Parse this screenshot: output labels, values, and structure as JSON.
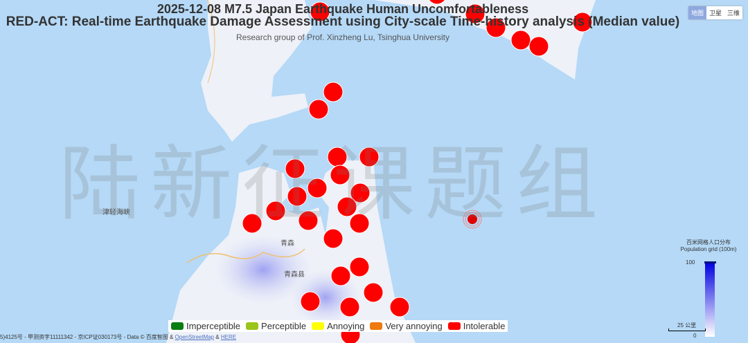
{
  "title": {
    "line1": "2025-12-08 M7.5 Japan Earthquake Human Uncomfortableness",
    "line2": "RED-ACT: Real-time Earthquake Damage Assessment using City-scale Time-history analysis (Median value)",
    "subtitle": "Research group of Prof. Xinzheng Lu, Tsinghua University"
  },
  "map_type": {
    "options": [
      "地图",
      "卫星",
      "三维"
    ],
    "selected": "地图"
  },
  "watermark": "陆新征课题组",
  "map_labels": {
    "strait": "津轻海峡",
    "city": "青森",
    "prefecture": "青森县"
  },
  "legend": [
    {
      "label": "Imperceptible",
      "color": "#0a7d10"
    },
    {
      "label": "Perceptible",
      "color": "#9ac51a"
    },
    {
      "label": "Annoying",
      "color": "#ffff00"
    },
    {
      "label": "Very annoying",
      "color": "#ef7a10"
    },
    {
      "label": "Intolerable",
      "color": "#ff0000"
    }
  ],
  "population": {
    "title_cn": "百米网格人口分布",
    "title_en": "Population grid (100m)",
    "max": "100",
    "min": "0",
    "scale": "25 公里"
  },
  "copyright": {
    "text": "5)4125号 - 甲测资字11111342 - 京ICP证030173号 - Data © 百度智图 &",
    "osm": "OpenStreetMap",
    "amp": "&",
    "here": "HERE"
  },
  "colors": {
    "water": "#b5d9f7",
    "land": "#eef1f8",
    "marker": "#ff0000",
    "epicenter": "#e00000"
  }
}
